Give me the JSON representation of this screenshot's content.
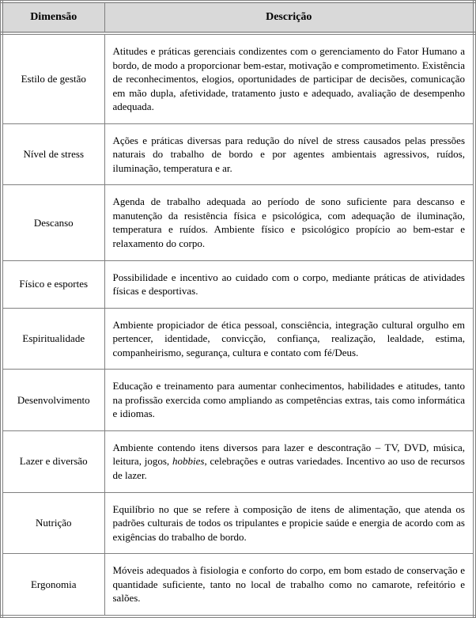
{
  "table": {
    "headers": {
      "dimensao": "Dimensão",
      "descricao": "Descrição"
    },
    "rows": [
      {
        "dimensao": "Estilo de gestão",
        "descricao": "Atitudes e práticas gerenciais condizentes com o gerenciamento do Fator Humano a bordo, de modo a proporcionar bem-estar, motivação e comprometimento. Existência de reconhecimentos, elogios, oportunidades de participar de decisões, comunicação em mão dupla, afetividade, tratamento justo e adequado, avaliação de desempenho adequada."
      },
      {
        "dimensao": "Nível de stress",
        "descricao": "Ações e práticas diversas para redução do nível de stress causados pelas pressões naturais do trabalho de bordo e por agentes ambientais agressivos, ruídos, iluminação, temperatura e ar."
      },
      {
        "dimensao": "Descanso",
        "descricao": "Agenda de trabalho adequada ao período de sono suficiente para descanso e manutenção da resistência física e psicológica, com adequação de iluminação, temperatura e ruídos. Ambiente físico e psicológico propício ao bem-estar e relaxamento do corpo."
      },
      {
        "dimensao": "Físico e esportes",
        "descricao": "Possibilidade e incentivo ao cuidado com o corpo, mediante práticas de atividades físicas e desportivas."
      },
      {
        "dimensao": "Espiritualidade",
        "descricao": "Ambiente propiciador de ética pessoal, consciência, integração cultural orgulho em pertencer, identidade, convicção, confiança, realização, lealdade, estima, companheirismo, segurança, cultura e contato com fé/Deus."
      },
      {
        "dimensao": "Desenvolvimento",
        "descricao": "Educação e treinamento para aumentar conhecimentos, habilidades e atitudes, tanto na profissão exercida como ampliando as competências extras, tais como informática e idiomas."
      },
      {
        "dimensao": "Lazer e diversão",
        "descricao_pre": "Ambiente contendo itens diversos para lazer e descontração – TV, DVD, música, leitura, jogos, ",
        "descricao_italic": "hobbies",
        "descricao_post": ", celebrações e outras variedades. Incentivo ao uso de recursos de lazer."
      },
      {
        "dimensao": "Nutrição",
        "descricao": "Equilíbrio no que se refere à composição de itens de alimentação, que atenda os padrões culturais de todos os tripulantes e propicie saúde e energia de acordo com as exigências do trabalho de bordo."
      },
      {
        "dimensao": "Ergonomia",
        "descricao": "Móveis adequados à fisiologia e conforto do corpo, em bom estado de conservação e quantidade suficiente, tanto no local de trabalho como no camarote, refeitório e salões."
      }
    ],
    "styling": {
      "header_bg": "#d9d9d9",
      "border_color": "#808080",
      "font_family": "Times New Roman",
      "header_fontsize": 14,
      "cell_fontsize": 13,
      "dim_col_width": 130,
      "total_width": 602
    }
  }
}
